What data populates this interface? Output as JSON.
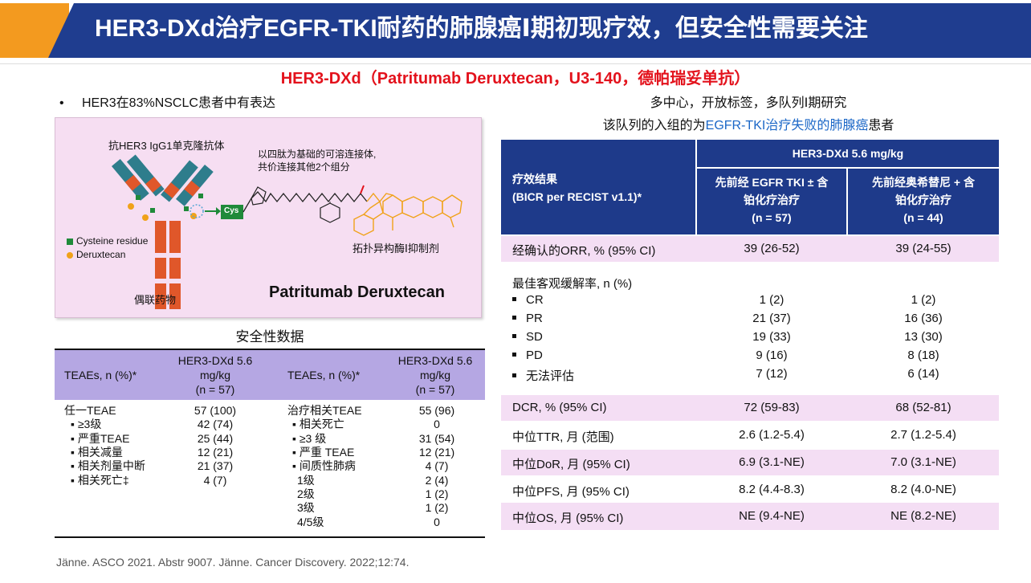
{
  "header": {
    "title": "HER3-DXd治疗EGFR-TKI耐药的肺腺癌Ⅰ期初现疗效，但安全性需要关注",
    "accent_orange": "#f39a1f",
    "accent_blue": "#1f3d8f"
  },
  "drug_title": "HER3-DXd（Patritumab Deruxtecan，U3-140，德帕瑞妥单抗）",
  "bullet": {
    "symbol": "•",
    "text": "HER3在83%NSCLC患者中有表达"
  },
  "study": {
    "line1": "多中心，开放标签，多队列Ⅰ期研究",
    "line2_prefix": "该队列的入组的为",
    "line2_highlight": "EGFR-TKI治疗失败的肺腺癌",
    "line2_suffix": "患者"
  },
  "molecule": {
    "antibody_label": "抗HER3 IgG1单克隆抗体",
    "linker_label_1": "以四肽为基础的可溶连接体,",
    "linker_label_2": "共价连接其他2个组分",
    "cys_label": "Cys",
    "legend_cysteine": "Cysteine residue",
    "legend_deruxtecan": "Deruxtecan",
    "conjugate_label": "偶联药物",
    "inhibitor_label": "拓扑异构酶Ⅰ抑制剂",
    "name": "Patritumab Deruxtecan",
    "colors": {
      "panel": "#f6def2",
      "antibody_teal": "#2e7d8c",
      "antibody_red": "#e0572a",
      "cysteine": "#1f8a3a",
      "payload": "#f0a21a"
    }
  },
  "safety": {
    "title": "安全性数据",
    "header_bg": "#b5a7e3",
    "left_col_header": "TEAEs, n (%)*",
    "left_val_header": [
      "HER3-DXd 5.6",
      "mg/kg",
      "(n = 57)"
    ],
    "right_col_header": "TEAEs, n (%)*",
    "right_val_header": [
      "HER3-DXd 5.6",
      "mg/kg",
      "(n = 57)"
    ],
    "left_rows": [
      {
        "label": "任一TEAE",
        "value": "57 (100)"
      },
      {
        "label": "▪   ≥3级",
        "value": "42 (74)"
      },
      {
        "label": "▪   严重TEAE",
        "value": "25 (44)"
      },
      {
        "label": "▪   相关减量",
        "value": "12 (21)"
      },
      {
        "label": "▪   相关剂量中断",
        "value": "21 (37)"
      },
      {
        "label": "▪   相关死亡‡",
        "value": "4 (7)"
      }
    ],
    "right_rows": [
      {
        "label": "治疗相关TEAE",
        "value": "55 (96)"
      },
      {
        "label": "▪   相关死亡",
        "value": "0"
      },
      {
        "label": "▪    ≥3 级",
        "value": "31 (54)"
      },
      {
        "label": "▪   严重 TEAE",
        "value": "12 (21)"
      },
      {
        "label": "▪   间质性肺病",
        "value": "4 (7)"
      },
      {
        "label": "1级",
        "value": "2 (4)"
      },
      {
        "label": "2级",
        "value": "1 (2)"
      },
      {
        "label": "3级",
        "value": "1 (2)"
      },
      {
        "label": "4/5级",
        "value": "0"
      }
    ]
  },
  "efficacy": {
    "header_bg": "#1e3a8a",
    "band_bg": "#f4def4",
    "outcome_header_1": "疗效结果",
    "outcome_header_2": "(BICR per RECIST v1.1)*",
    "dose_header": "HER3-DXd 5.6 mg/kg",
    "col1_header": [
      "先前经 EGFR TKI ± 含",
      "铂化疗治疗",
      "(n = 57)"
    ],
    "col2_header": [
      "先前经奥希替尼 + 含",
      "铂化疗治疗",
      "(n = 44)"
    ],
    "orr": {
      "label": "经确认的ORR, % (95% CI)",
      "v1": "39 (26-52)",
      "v2": "39 (24-55)"
    },
    "bor_title": "最佳客观缓解率, n (%)",
    "bor_rows": [
      {
        "label": "CR",
        "v1": "1 (2)",
        "v2": "1 (2)"
      },
      {
        "label": "PR",
        "v1": "21 (37)",
        "v2": "16 (36)"
      },
      {
        "label": "SD",
        "v1": "19 (33)",
        "v2": "13 (30)"
      },
      {
        "label": "PD",
        "v1": "9 (16)",
        "v2": "8 (18)"
      },
      {
        "label": "无法评估",
        "v1": "7 (12)",
        "v2": "6 (14)"
      }
    ],
    "dcr": {
      "label": "DCR, % (95% CI)",
      "v1": "72 (59-83)",
      "v2": "68 (52-81)"
    },
    "ttr": {
      "label": "中位TTR, 月 (范围)",
      "v1": "2.6 (1.2-5.4)",
      "v2": "2.7 (1.2-5.4)"
    },
    "dor": {
      "label": "中位DoR, 月 (95% CI)",
      "v1": "6.9 (3.1-NE)",
      "v2": "7.0 (3.1-NE)"
    },
    "pfs": {
      "label": "中位PFS, 月 (95% CI)",
      "v1": "8.2 (4.4-8.3)",
      "v2": "8.2 (4.0-NE)"
    },
    "os": {
      "label": "中位OS, 月 (95% CI)",
      "v1": "NE (9.4-NE)",
      "v2": "NE (8.2-NE)"
    }
  },
  "citation": "Jänne. ASCO 2021. Abstr 9007. Jänne. Cancer Discovery. 2022;12:74."
}
